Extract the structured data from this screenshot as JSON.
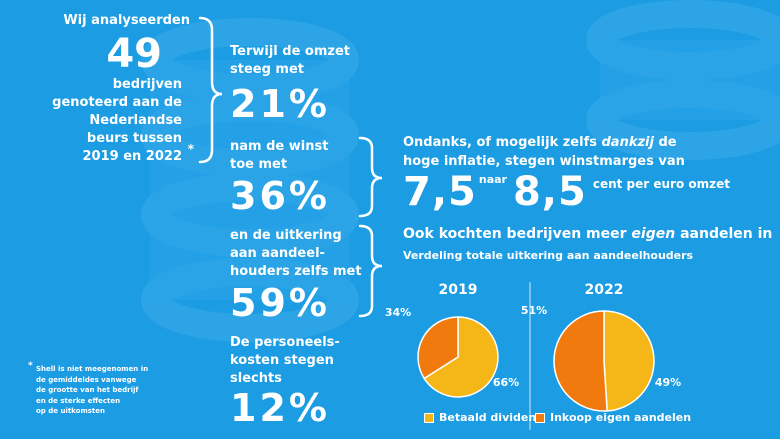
{
  "colors": {
    "background": "#1b9ce3",
    "dividend": "#f5b617",
    "buyback": "#f07a0e",
    "text": "#ffffff"
  },
  "intro": {
    "line1": "Wij analyseerden",
    "number": "49",
    "rest": [
      "bedrijven",
      "genoteerd aan de",
      "Nederlandse",
      "beurs tussen",
      "2019 en 2022"
    ],
    "asterisk": "*"
  },
  "stats": [
    {
      "label": [
        "Terwijl de omzet",
        "steeg met"
      ],
      "value": "21%"
    },
    {
      "label": [
        "nam de winst",
        "toe met"
      ],
      "value": "36%"
    },
    {
      "label": [
        "en de uitkering",
        "aan aandeel-",
        "houders zelfs met"
      ],
      "value": "59%"
    },
    {
      "label": [
        "De personeels-",
        "kosten stegen",
        "slechts"
      ],
      "value": "12%"
    }
  ],
  "margins": {
    "line1_pre": "Ondanks, of mogelijk zelfs ",
    "line1_em": "dankzij",
    "line1_post": " de",
    "line2": "hoge inflatie, stegen winstmarges van",
    "from": "7,5",
    "naar": "naar",
    "to": "8,5",
    "unit": "cent per euro omzet"
  },
  "buyback": {
    "title_pre": "Ook kochten bedrijven meer ",
    "title_em": "eigen",
    "title_post": " aandelen in",
    "subtitle": "Verdeling totale uitkering aan aandeelhouders"
  },
  "chart_data": {
    "type": "pie",
    "title": "Verdeling totale uitkering aan aandeelhouders",
    "categories": [
      "Betaald dividend",
      "Inkoop eigen aandelen"
    ],
    "pies": [
      {
        "name": "2019",
        "values": [
          66,
          34
        ],
        "labels": [
          "66%",
          "34%"
        ]
      },
      {
        "name": "2022",
        "values": [
          49,
          51
        ],
        "labels": [
          "49%",
          "51%"
        ]
      }
    ],
    "legend": [
      "Betaald dividend",
      "Inkoop eigen aandelen"
    ],
    "legend_position": "bottom"
  },
  "footnote": {
    "star": "*",
    "lines": [
      "Shell is niet meegenomen in",
      "de gemiddeldes vanwege",
      "de grootte van het bedrijf",
      "en de sterke effecten",
      "op de uitkomsten"
    ]
  }
}
